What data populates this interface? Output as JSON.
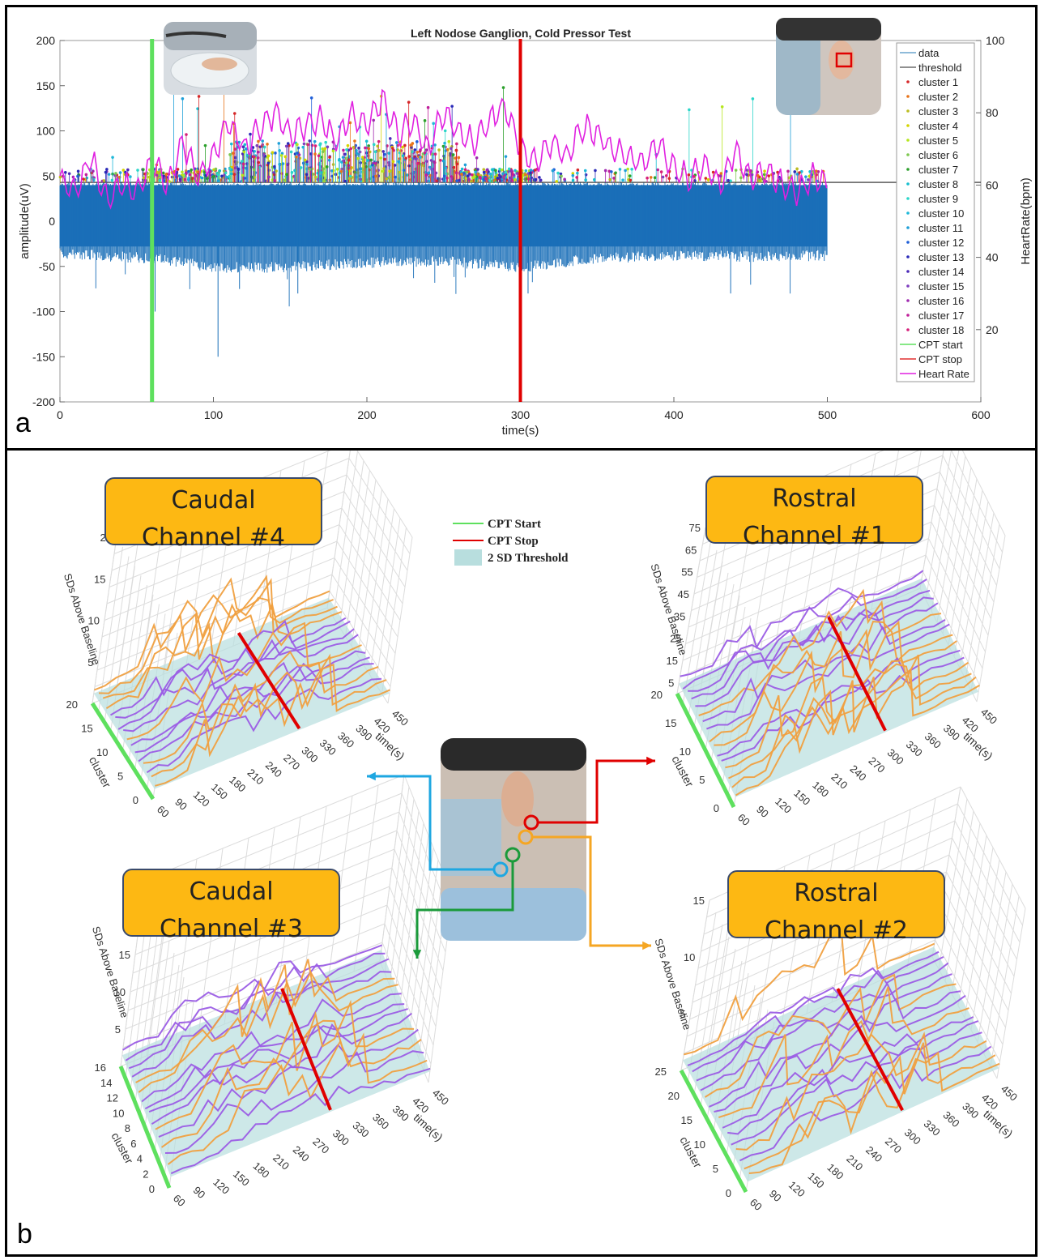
{
  "panel_a": {
    "label": "a",
    "chart_data": {
      "type": "line",
      "title": "Left Nodose Ganglion, Cold Pressor Test",
      "xlabel": "time(s)",
      "ylabel": "amplitude(uV)",
      "y2label": "HeartRate(bpm)",
      "xlim": [
        0,
        600
      ],
      "ylim": [
        -200,
        200
      ],
      "y2lim": [
        0,
        100
      ],
      "xticks": [
        "0",
        "100",
        "200",
        "300",
        "400",
        "500",
        "600"
      ],
      "yticks": [
        "200",
        "150",
        "100",
        "50",
        "0",
        "-50",
        "-100",
        "-150",
        "-200"
      ],
      "y2ticks": [
        "100",
        "80",
        "60",
        "40",
        "20"
      ],
      "threshold": 43,
      "cpt_start": 60,
      "cpt_stop": 300,
      "data_envelope": {
        "x": [
          0,
          60,
          100,
          150,
          200,
          250,
          300,
          350,
          400,
          450,
          500
        ],
        "upper": [
          43,
          43,
          43,
          43,
          43,
          43,
          43,
          43,
          43,
          43,
          43
        ],
        "lower": [
          -30,
          -35,
          -45,
          -45,
          -40,
          -38,
          -45,
          -35,
          -32,
          -33,
          -32
        ]
      },
      "heart_rate": {
        "x": [
          0,
          10,
          20,
          30,
          40,
          50,
          60,
          70,
          80,
          90,
          100,
          110,
          120,
          130,
          140,
          150,
          160,
          170,
          180,
          190,
          200,
          210,
          220,
          230,
          240,
          250,
          260,
          270,
          280,
          290,
          300,
          310,
          320,
          330,
          340,
          350,
          360,
          370,
          380,
          390,
          400,
          410,
          420,
          430,
          440,
          450,
          460,
          470,
          480,
          490,
          500
        ],
        "y": [
          62,
          58,
          68,
          56,
          60,
          58,
          66,
          60,
          72,
          62,
          68,
          78,
          70,
          76,
          80,
          74,
          76,
          78,
          72,
          80,
          76,
          84,
          74,
          78,
          70,
          80,
          74,
          72,
          78,
          82,
          70,
          66,
          72,
          68,
          76,
          74,
          70,
          68,
          66,
          72,
          64,
          62,
          66,
          60,
          70,
          62,
          64,
          60,
          58,
          62,
          60
        ]
      },
      "legend": [
        "data",
        "threshold",
        "cluster 1",
        "cluster 2",
        "cluster 3",
        "cluster 4",
        "cluster 5",
        "cluster 6",
        "cluster 7",
        "cluster 8",
        "cluster 9",
        "cluster 10",
        "cluster 11",
        "cluster 12",
        "cluster 13",
        "cluster 14",
        "cluster 15",
        "cluster 16",
        "cluster 17",
        "cluster 18",
        "CPT start",
        "CPT stop",
        "Heart Rate"
      ],
      "legend_colors": [
        "#1f77b4",
        "#222222",
        "#d62728",
        "#e8741a",
        "#bcbd22",
        "#d4d400",
        "#b5e61d",
        "#7ec850",
        "#2ca02c",
        "#17becf",
        "#2bd6c9",
        "#1fb8d9",
        "#1f9fd8",
        "#1f5fd8",
        "#2a2ab8",
        "#4b2ab8",
        "#7f3fbf",
        "#a02ab0",
        "#c0209a",
        "#d6207a",
        "#5ee05e",
        "#e03030",
        "#e020e0"
      ],
      "legend_placement": "right"
    }
  },
  "panel_b": {
    "label": "b",
    "legend": {
      "cpt_start": "CPT Start",
      "cpt_stop": "CPT Stop",
      "threshold": "2 SD Threshold"
    },
    "colors": {
      "cpt_start": "#5ee05e",
      "cpt_stop": "#e00000",
      "threshold": "#b8dede",
      "lines": "#9b5de5",
      "peaks": "#f0a040",
      "box": "#fdb813"
    },
    "channels": [
      {
        "title_line1": "Caudal",
        "title_line2": "Channel #4",
        "arrow_color": "#1ea7e1",
        "chart_data": {
          "type": "line",
          "xlabel": "time(s)",
          "ylabel": "SDs Above Baseline",
          "zlabel": "cluster",
          "xticks": [
            "60",
            "90",
            "120",
            "150",
            "180",
            "210",
            "240",
            "270",
            "300",
            "330",
            "360",
            "390",
            "420",
            "450"
          ],
          "yticks": [
            "5",
            "10",
            "15",
            "20"
          ],
          "zticks": [
            "0",
            "5",
            "10",
            "15",
            "20"
          ],
          "ylim": [
            0,
            20
          ],
          "cpt_stop": 300
        }
      },
      {
        "title_line1": "Rostral",
        "title_line2": "Channel #1",
        "arrow_color": "#e00000",
        "chart_data": {
          "type": "line",
          "xlabel": "time(s)",
          "ylabel": "SDs Above Baseline",
          "zlabel": "cluster",
          "xticks": [
            "60",
            "90",
            "120",
            "150",
            "180",
            "210",
            "240",
            "270",
            "300",
            "330",
            "360",
            "390",
            "420",
            "450"
          ],
          "yticks": [
            "5",
            "15",
            "25",
            "35",
            "45",
            "55",
            "65",
            "75"
          ],
          "zticks": [
            "0",
            "5",
            "10",
            "15",
            "20"
          ],
          "ylim": [
            0,
            75
          ],
          "cpt_stop": 300
        }
      },
      {
        "title_line1": "Caudal",
        "title_line2": "Channel #3",
        "arrow_color": "#1a9a3a",
        "chart_data": {
          "type": "line",
          "xlabel": "time(s)",
          "ylabel": "SDs Above Baseline",
          "zlabel": "cluster",
          "xticks": [
            "60",
            "90",
            "120",
            "150",
            "180",
            "210",
            "240",
            "270",
            "300",
            "330",
            "360",
            "390",
            "420",
            "450"
          ],
          "yticks": [
            "5",
            "10",
            "15",
            "20",
            "25"
          ],
          "zticks": [
            "0",
            "2",
            "4",
            "6",
            "8",
            "10",
            "12",
            "14",
            "16"
          ],
          "ylim": [
            0,
            25
          ],
          "cpt_stop": 300
        }
      },
      {
        "title_line1": "Rostral",
        "title_line2": "Channel #2",
        "arrow_color": "#f5a623",
        "chart_data": {
          "type": "line",
          "xlabel": "time(s)",
          "ylabel": "SDs Above Baseline",
          "zlabel": "cluster",
          "xticks": [
            "60",
            "90",
            "120",
            "150",
            "180",
            "210",
            "240",
            "270",
            "300",
            "330",
            "360",
            "390",
            "420",
            "450"
          ],
          "yticks": [
            "5",
            "10",
            "15"
          ],
          "zticks": [
            "0",
            "5",
            "10",
            "15",
            "20",
            "25"
          ],
          "ylim": [
            0,
            15
          ],
          "cpt_stop": 300
        }
      }
    ]
  }
}
